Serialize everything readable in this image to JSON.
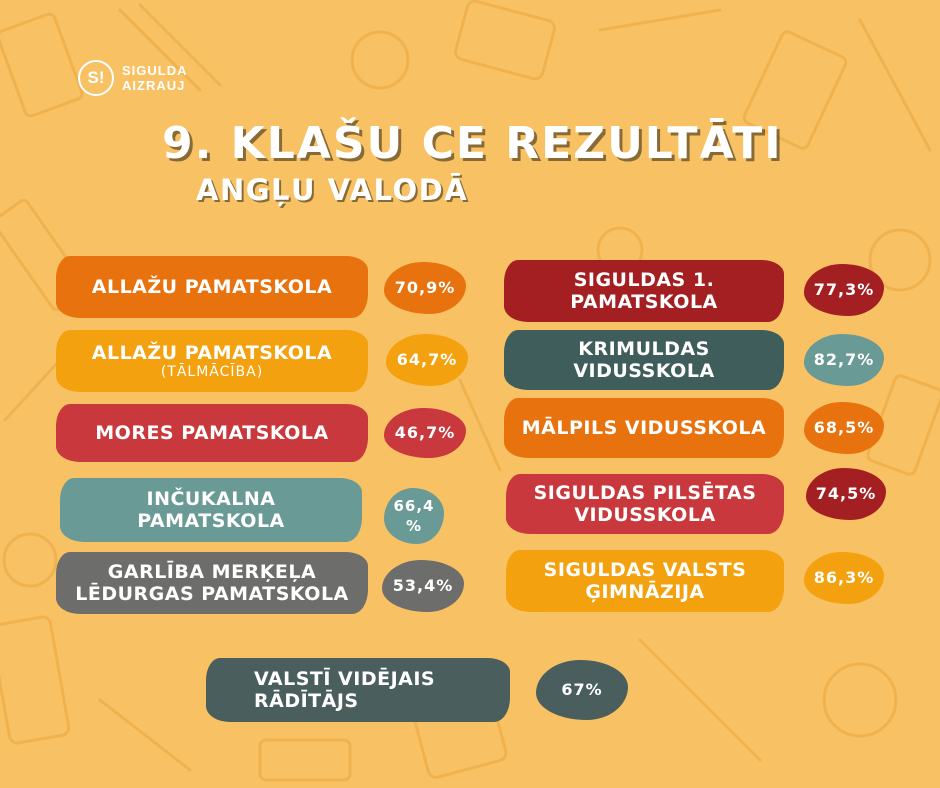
{
  "logo": {
    "mark": "S!",
    "line1": "SIGULDA",
    "line2": "AIZRAUJ"
  },
  "title": "9. KLAŠU CE REZULTĀTI",
  "subtitle": "ANGĻU VALODĀ",
  "colors": {
    "background": "#f8c264",
    "orange": "#e8720e",
    "amber": "#f3a10e",
    "red": "#c8383c",
    "teal": "#6a9a96",
    "gray": "#6d6d6c",
    "dark_red": "#a41f22",
    "dark_teal": "#3f5d5a",
    "slate": "#4a5e5d"
  },
  "left_schools": [
    {
      "name": "ALLAŽU PAMATSKOLA",
      "note": "",
      "result": "70,9%"
    },
    {
      "name": "ALLAŽU PAMATSKOLA",
      "note": "(TĀLMĀCĪBA)",
      "result": "64,7%"
    },
    {
      "name": "MORES PAMATSKOLA",
      "note": "",
      "result": "46,7%"
    },
    {
      "name": "INČUKALNA PAMATSKOLA",
      "note": "",
      "result": "66,4 %"
    },
    {
      "name": "GARLĪBA MERĶEĻA LĒDURGAS PAMATSKOLA",
      "note": "",
      "result": "53,4%"
    }
  ],
  "right_schools": [
    {
      "name": "SIGULDAS 1. PAMATSKOLA",
      "result": "77,3%"
    },
    {
      "name": "KRIMULDAS VIDUSSKOLA",
      "result": "82,7%"
    },
    {
      "name": "MĀLPILS VIDUSSKOLA",
      "result": "68,5%"
    },
    {
      "name": "SIGULDAS PILSĒTAS VIDUSSKOLA",
      "result": "74,5%"
    },
    {
      "name": "SIGULDAS VALSTS ĢIMNĀZIJA",
      "result": "86,3%"
    }
  ],
  "national": {
    "label": "VALSTĪ VIDĒJAIS RĀDĪTĀJS",
    "result": "67%"
  }
}
